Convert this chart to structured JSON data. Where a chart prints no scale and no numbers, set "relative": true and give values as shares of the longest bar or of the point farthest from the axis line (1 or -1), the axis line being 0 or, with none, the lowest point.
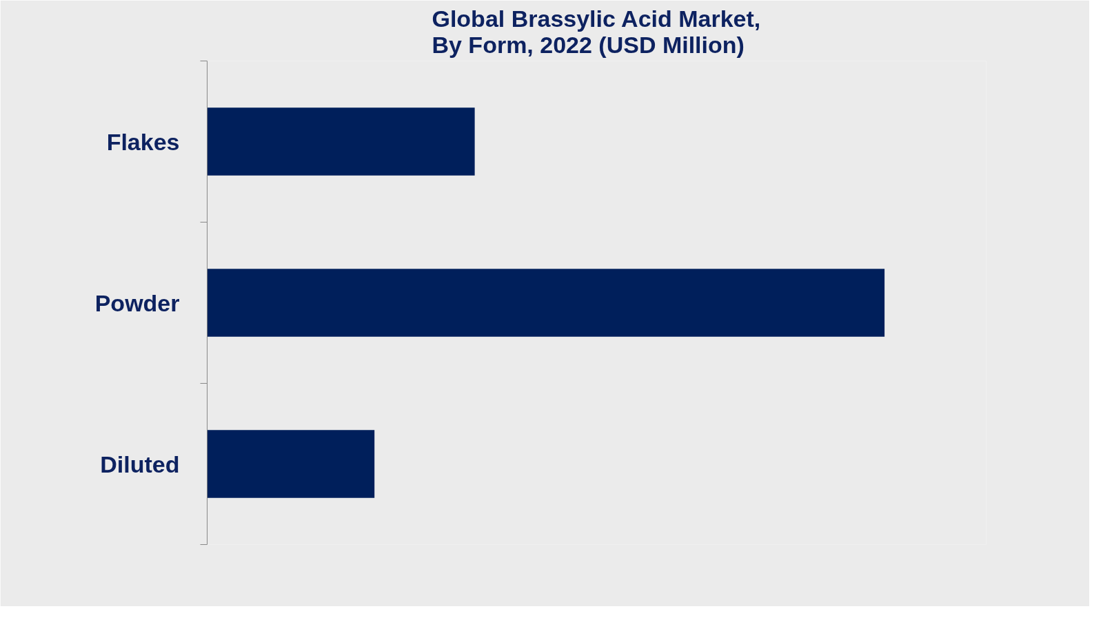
{
  "chart_data": {
    "type": "bar",
    "orientation": "horizontal",
    "relative": true,
    "title": "Global Brassylic Acid Market,\nBy Form, 2022 (USD Million)",
    "categories": [
      "Flakes",
      "Powder",
      "Diluted"
    ],
    "values": [
      0.395,
      1,
      0.247
    ],
    "color": "#001f5b",
    "grid": false
  }
}
